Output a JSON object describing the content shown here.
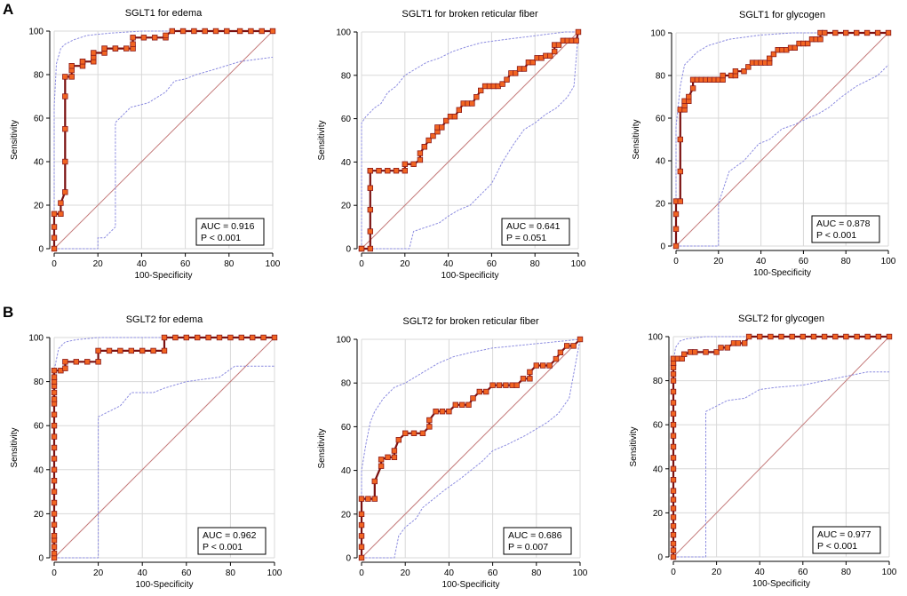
{
  "panel_labels": [
    "A",
    "B"
  ],
  "colors": {
    "roc_line": "#7a1010",
    "roc_marker": "#f26522",
    "roc_marker_edge": "#8a1a1a",
    "ci_line": "#8c8ce0",
    "diagonal": "#c47a7a",
    "grid": "#d8d8d8"
  },
  "chart_data": [
    {
      "type": "line",
      "panel": "A",
      "title": "SGLT1 for edema",
      "xlabel": "100-Specificity",
      "ylabel": "Sensitivity",
      "xlim": [
        0,
        100
      ],
      "ylim": [
        0,
        100
      ],
      "xticks": [
        "0",
        "20",
        "40",
        "60",
        "80",
        "100"
      ],
      "yticks": [
        "0",
        "20",
        "40",
        "60",
        "80",
        "100"
      ],
      "auc_text": "AUC = 0.916",
      "p_text": "P < 0.001",
      "roc": {
        "x": [
          0,
          0,
          0,
          0,
          3,
          3,
          5,
          5,
          5,
          5,
          5,
          8,
          8,
          8,
          13,
          13,
          13,
          18,
          18,
          18,
          23,
          23,
          23,
          28,
          28,
          33,
          36,
          36,
          36,
          41,
          46,
          51,
          51,
          54,
          59,
          64,
          69,
          74,
          79,
          85,
          90,
          95,
          100
        ],
        "y": [
          0,
          5,
          10,
          16,
          16,
          21,
          26,
          40,
          55,
          70,
          79,
          79,
          82,
          84,
          84,
          86,
          86,
          86,
          88,
          90,
          90,
          92,
          92,
          92,
          92,
          92,
          92,
          94,
          97,
          97,
          97,
          97,
          98,
          100,
          100,
          100,
          100,
          100,
          100,
          100,
          100,
          100,
          100
        ]
      },
      "ci_upper": {
        "x": [
          0,
          0,
          1,
          3,
          5,
          9,
          15,
          25,
          40,
          60,
          80,
          100
        ],
        "y": [
          0,
          65,
          85,
          92,
          94,
          96,
          98,
          99,
          100,
          100,
          100,
          100
        ]
      },
      "ci_lower": {
        "x": [
          0,
          10,
          20,
          20,
          23,
          28,
          28,
          35,
          43,
          51,
          55,
          60,
          65,
          72,
          85,
          100
        ],
        "y": [
          0,
          0,
          0,
          5,
          5,
          10,
          58,
          65,
          67,
          72,
          77,
          78,
          80,
          82,
          86,
          88
        ]
      }
    },
    {
      "type": "line",
      "panel": "A",
      "title": "SGLT1 for broken reticular fiber",
      "xlabel": "100-Specificity",
      "ylabel": "Sensitivity",
      "xlim": [
        0,
        100
      ],
      "ylim": [
        0,
        100
      ],
      "xticks": [
        "0",
        "20",
        "40",
        "60",
        "80",
        "100"
      ],
      "yticks": [
        "0",
        "20",
        "40",
        "60",
        "80",
        "100"
      ],
      "auc_text": "AUC = 0.641",
      "p_text": "P = 0.051",
      "roc": {
        "x": [
          0,
          0,
          4,
          4,
          4,
          4,
          4,
          4,
          8,
          12,
          16,
          20,
          20,
          24,
          27,
          27,
          29,
          29,
          31,
          33,
          35,
          35,
          37,
          39,
          41,
          43,
          45,
          47,
          49,
          51,
          53,
          55,
          57,
          59,
          61,
          63,
          65,
          67,
          69,
          71,
          73,
          75,
          77,
          79,
          81,
          83,
          85,
          87,
          89,
          89,
          91,
          93,
          95,
          97,
          99,
          100
        ],
        "y": [
          0,
          0,
          0,
          8,
          18,
          28,
          36,
          36,
          36,
          36,
          36,
          36,
          39,
          39,
          41,
          44,
          47,
          47,
          50,
          52,
          54,
          56,
          56,
          59,
          61,
          61,
          64,
          67,
          67,
          67,
          70,
          73,
          75,
          75,
          75,
          75,
          76,
          78,
          81,
          81,
          83,
          83,
          86,
          86,
          88,
          88,
          89,
          89,
          91,
          94,
          94,
          96,
          96,
          96,
          96,
          100
        ]
      },
      "ci_upper": {
        "x": [
          0,
          0,
          2,
          4,
          6,
          9,
          12,
          16,
          20,
          25,
          30,
          36,
          42,
          48,
          55,
          62,
          70,
          78,
          86,
          94,
          100
        ],
        "y": [
          0,
          58,
          61,
          63,
          65,
          67,
          72,
          75,
          80,
          83,
          86,
          88,
          91,
          93,
          95,
          96,
          97,
          98,
          99,
          100,
          100
        ]
      },
      "ci_lower": {
        "x": [
          0,
          5,
          15,
          22,
          24,
          30,
          36,
          40,
          45,
          50,
          55,
          60,
          65,
          70,
          75,
          80,
          85,
          90,
          95,
          98,
          100
        ],
        "y": [
          0,
          0,
          0,
          0,
          8,
          10,
          12,
          15,
          18,
          20,
          25,
          30,
          40,
          48,
          55,
          58,
          62,
          65,
          70,
          75,
          100
        ]
      }
    },
    {
      "type": "line",
      "panel": "A",
      "title": "SGLT1 for glycogen",
      "xlabel": "100-Specificity",
      "ylabel": "Sensitivity",
      "xlim": [
        0,
        100
      ],
      "ylim": [
        0,
        100
      ],
      "xticks": [
        "0",
        "20",
        "40",
        "60",
        "80",
        "100"
      ],
      "yticks": [
        "0",
        "20",
        "40",
        "60",
        "80",
        "100"
      ],
      "auc_text": "AUC = 0.878",
      "p_text": "P < 0.001",
      "roc": {
        "x": [
          0,
          0,
          0,
          0,
          2,
          2,
          2,
          2,
          4,
          4,
          4,
          6,
          6,
          8,
          8,
          10,
          12,
          14,
          16,
          18,
          20,
          22,
          22,
          26,
          28,
          28,
          32,
          34,
          36,
          38,
          40,
          42,
          44,
          44,
          46,
          48,
          50,
          52,
          54,
          56,
          58,
          60,
          62,
          64,
          66,
          68,
          68,
          70,
          75,
          80,
          85,
          90,
          95,
          100
        ],
        "y": [
          0,
          8,
          15,
          21,
          21,
          35,
          50,
          64,
          64,
          66,
          68,
          68,
          70,
          74,
          78,
          78,
          78,
          78,
          78,
          78,
          78,
          78,
          80,
          80,
          80,
          82,
          82,
          84,
          86,
          86,
          86,
          86,
          86,
          88,
          90,
          92,
          92,
          92,
          93,
          93,
          95,
          95,
          95,
          97,
          97,
          97,
          100,
          100,
          100,
          100,
          100,
          100,
          100,
          100
        ]
      },
      "ci_upper": {
        "x": [
          0,
          0,
          2,
          4,
          7,
          10,
          15,
          25,
          40,
          55,
          70,
          100
        ],
        "y": [
          0,
          56,
          75,
          85,
          88,
          91,
          94,
          97,
          99,
          100,
          100,
          100
        ]
      },
      "ci_lower": {
        "x": [
          0,
          10,
          20,
          20,
          25,
          32,
          39,
          44,
          50,
          56,
          62,
          67,
          72,
          78,
          85,
          95,
          100
        ],
        "y": [
          0,
          0,
          0,
          20,
          35,
          40,
          48,
          50,
          55,
          57,
          60,
          62,
          65,
          70,
          75,
          80,
          85
        ]
      }
    },
    {
      "type": "line",
      "panel": "B",
      "title": "SGLT2  for edema",
      "xlabel": "100-Specificity",
      "ylabel": "Sensitivity",
      "xlim": [
        0,
        100
      ],
      "ylim": [
        0,
        100
      ],
      "xticks": [
        "0",
        "20",
        "40",
        "60",
        "80",
        "100"
      ],
      "yticks": [
        "0",
        "20",
        "40",
        "60",
        "80",
        "100"
      ],
      "auc_text": "AUC = 0.962",
      "p_text": "P < 0.001",
      "roc": {
        "x": [
          0,
          0,
          0,
          0,
          0,
          0,
          0,
          0,
          0,
          0,
          0,
          0,
          0,
          0,
          0,
          0,
          0,
          0,
          0,
          0,
          0,
          0,
          0,
          3,
          5,
          5,
          10,
          15,
          20,
          20,
          25,
          30,
          35,
          40,
          45,
          50,
          50,
          55,
          60,
          65,
          70,
          75,
          80,
          85,
          90,
          95,
          100
        ],
        "y": [
          0,
          2,
          5,
          8,
          10,
          15,
          20,
          25,
          30,
          35,
          40,
          45,
          50,
          55,
          60,
          65,
          70,
          72,
          75,
          78,
          80,
          82,
          85,
          85,
          86,
          89,
          89,
          89,
          89,
          94,
          94,
          94,
          94,
          94,
          94,
          94,
          100,
          100,
          100,
          100,
          100,
          100,
          100,
          100,
          100,
          100,
          100
        ]
      },
      "ci_upper": {
        "x": [
          0,
          0,
          2,
          5,
          10,
          20,
          35,
          60,
          100
        ],
        "y": [
          0,
          85,
          95,
          98,
          99,
          100,
          100,
          100,
          100
        ]
      },
      "ci_lower": {
        "x": [
          0,
          10,
          20,
          20,
          30,
          35,
          45,
          50,
          60,
          75,
          82,
          100
        ],
        "y": [
          0,
          0,
          0,
          64,
          69,
          75,
          75,
          77,
          80,
          82,
          87,
          87
        ]
      }
    },
    {
      "type": "line",
      "panel": "B",
      "title": "SGLT2  for broken reticular fiber",
      "xlabel": "100-Specificity",
      "ylabel": "Sensitivity",
      "xlim": [
        0,
        100
      ],
      "ylim": [
        0,
        100
      ],
      "xticks": [
        "0",
        "20",
        "40",
        "60",
        "80",
        "100"
      ],
      "yticks": [
        "0",
        "20",
        "40",
        "60",
        "80",
        "100"
      ],
      "auc_text": "AUC = 0.686",
      "p_text": "P = 0.007",
      "roc": {
        "x": [
          0,
          0,
          0,
          0,
          0,
          0,
          3,
          6,
          6,
          9,
          9,
          12,
          15,
          15,
          17,
          20,
          24,
          28,
          31,
          31,
          34,
          37,
          40,
          43,
          46,
          49,
          51,
          54,
          57,
          60,
          63,
          66,
          69,
          71,
          74,
          77,
          77,
          80,
          83,
          86,
          89,
          91,
          94,
          97,
          100
        ],
        "y": [
          0,
          5,
          10,
          15,
          20,
          27,
          27,
          27,
          35,
          42,
          45,
          46,
          46,
          49,
          54,
          57,
          57,
          57,
          60,
          63,
          67,
          67,
          67,
          70,
          70,
          70,
          73,
          76,
          76,
          79,
          79,
          79,
          79,
          79,
          82,
          82,
          85,
          88,
          88,
          88,
          91,
          94,
          97,
          97,
          100
        ]
      },
      "ci_upper": {
        "x": [
          0,
          0,
          2,
          4,
          6,
          10,
          15,
          20,
          25,
          30,
          35,
          42,
          50,
          60,
          70,
          80,
          90,
          100
        ],
        "y": [
          0,
          40,
          52,
          62,
          67,
          73,
          78,
          80,
          83,
          86,
          89,
          92,
          94,
          96,
          97,
          98,
          99,
          100
        ]
      },
      "ci_lower": {
        "x": [
          0,
          10,
          15,
          17,
          20,
          25,
          28,
          33,
          38,
          45,
          50,
          55,
          60,
          67,
          75,
          80,
          85,
          90,
          95,
          100
        ],
        "y": [
          0,
          0,
          0,
          10,
          14,
          18,
          23,
          27,
          31,
          36,
          40,
          44,
          49,
          52,
          56,
          59,
          62,
          66,
          73,
          100
        ]
      }
    },
    {
      "type": "line",
      "panel": "B",
      "title": "SGLT2  for glycogen",
      "xlabel": "100-Specificity",
      "ylabel": "Sensitivity",
      "xlim": [
        0,
        100
      ],
      "ylim": [
        0,
        100
      ],
      "xticks": [
        "0",
        "20",
        "40",
        "60",
        "80",
        "100"
      ],
      "yticks": [
        "0",
        "20",
        "40",
        "60",
        "80",
        "100"
      ],
      "auc_text": "AUC = 0.977",
      "p_text": "P < 0.001",
      "roc": {
        "x": [
          0,
          0,
          0,
          0,
          0,
          0,
          0,
          0,
          0,
          0,
          0,
          0,
          0,
          0,
          0,
          0,
          0,
          0,
          0,
          0,
          0,
          0,
          0,
          2,
          4,
          5,
          8,
          10,
          15,
          20,
          22,
          25,
          28,
          30,
          33,
          35,
          40,
          45,
          50,
          55,
          60,
          65,
          70,
          75,
          80,
          85,
          90,
          95,
          100
        ],
        "y": [
          0,
          3,
          6,
          10,
          14,
          18,
          22,
          26,
          30,
          35,
          40,
          45,
          50,
          55,
          60,
          65,
          70,
          75,
          80,
          83,
          86,
          88,
          90,
          90,
          90,
          92,
          93,
          93,
          93,
          93,
          95,
          95,
          97,
          97,
          97,
          100,
          100,
          100,
          100,
          100,
          100,
          100,
          100,
          100,
          100,
          100,
          100,
          100,
          100
        ]
      },
      "ci_upper": {
        "x": [
          0,
          0,
          1,
          3,
          6,
          15,
          30,
          60,
          100
        ],
        "y": [
          0,
          88,
          95,
          98,
          99,
          100,
          100,
          100,
          100
        ]
      },
      "ci_lower": {
        "x": [
          0,
          10,
          15,
          15,
          25,
          33,
          40,
          48,
          60,
          75,
          90,
          100
        ],
        "y": [
          0,
          0,
          0,
          66,
          71,
          72,
          76,
          77,
          78,
          81,
          84,
          84
        ]
      }
    }
  ]
}
